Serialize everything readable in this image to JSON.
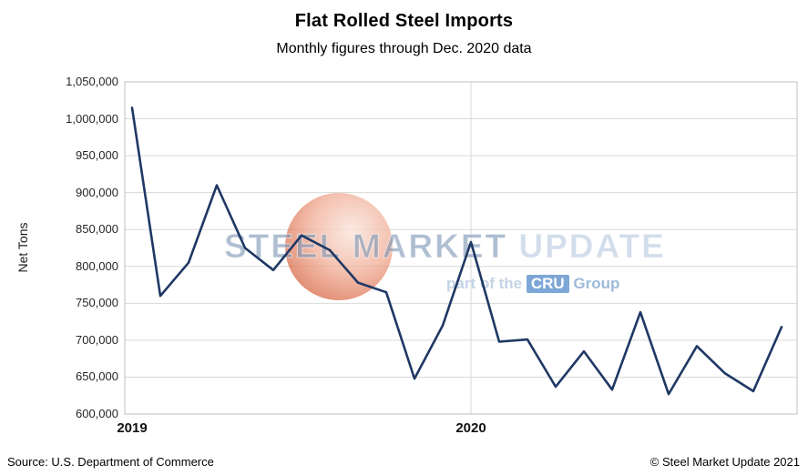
{
  "title": "Flat Rolled Steel Imports",
  "subtitle": "Monthly figures through Dec. 2020 data",
  "y_axis_title": "Net Tons",
  "footer": {
    "source": "Source: U.S. Department of Commerce",
    "copyright": "© Steel Market Update 2021"
  },
  "watermark": {
    "brand_steel_market": "STEEL MARKET",
    "brand_update": "UPDATE",
    "tagline_prefix": "part of the",
    "tagline_cru": "CRU",
    "tagline_suffix": "Group"
  },
  "chart_data": {
    "type": "line",
    "title": "Flat Rolled Steel Imports",
    "subtitle": "Monthly figures through Dec. 2020 data",
    "xlabel": "",
    "ylabel": "Net Tons",
    "ylim": [
      600000,
      1050000
    ],
    "ytick_step": 50000,
    "ytick_labels": [
      "600,000",
      "650,000",
      "700,000",
      "750,000",
      "800,000",
      "850,000",
      "900,000",
      "950,000",
      "1,000,000",
      "1,050,000"
    ],
    "x_axis_labels": [
      "2019",
      "2020"
    ],
    "x_label_indices": [
      0,
      12
    ],
    "x": [
      "Jan 2019",
      "Feb 2019",
      "Mar 2019",
      "Apr 2019",
      "May 2019",
      "Jun 2019",
      "Jul 2019",
      "Aug 2019",
      "Sep 2019",
      "Oct 2019",
      "Nov 2019",
      "Dec 2019",
      "Jan 2020",
      "Feb 2020",
      "Mar 2020",
      "Apr 2020",
      "May 2020",
      "Jun 2020",
      "Jul 2020",
      "Aug 2020",
      "Sep 2020",
      "Oct 2020",
      "Nov 2020",
      "Dec 2020"
    ],
    "values": [
      1015000,
      760000,
      805000,
      910000,
      825000,
      795000,
      842000,
      822000,
      778000,
      765000,
      648000,
      720000,
      833000,
      698000,
      701000,
      637000,
      685000,
      633000,
      738000,
      627000,
      692000,
      655000,
      631000,
      718000
    ],
    "line_color": "#1f3864",
    "grid": true,
    "grid_color": "#d9d9d9",
    "plot_border_color": "#bfbfbf",
    "legend": "none"
  }
}
